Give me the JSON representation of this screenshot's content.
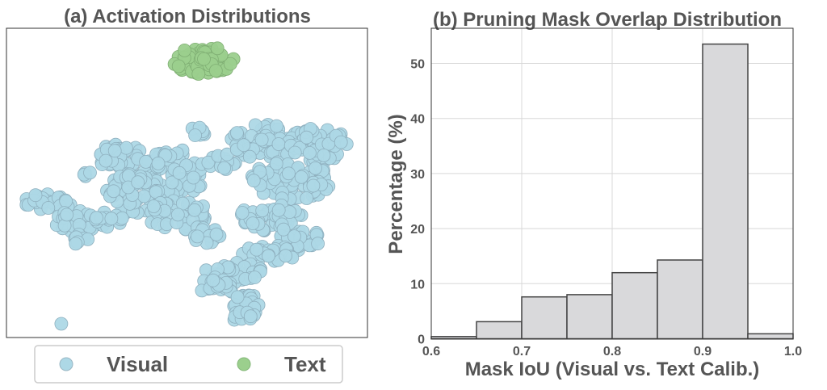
{
  "chart_data": [
    {
      "panel": "a",
      "type": "scatter",
      "title": "(a) Activation Distributions",
      "xlabel": "",
      "ylabel": "",
      "axes_visible": false,
      "grid": false,
      "legend": {
        "position": "bottom",
        "entries": [
          "Visual",
          "Text"
        ]
      },
      "series": [
        {
          "name": "Visual",
          "color": "#ADD8E6",
          "clusters": [
            {
              "cx": 150,
              "cy": 195,
              "rx": 28,
              "ry": 18,
              "n": 40
            },
            {
              "cx": 215,
              "cy": 215,
              "rx": 40,
              "ry": 30,
              "n": 70
            },
            {
              "cx": 165,
              "cy": 240,
              "rx": 35,
              "ry": 25,
              "n": 55
            },
            {
              "cx": 245,
              "cy": 165,
              "rx": 10,
              "ry": 8,
              "n": 10
            },
            {
              "cx": 275,
              "cy": 200,
              "rx": 18,
              "ry": 12,
              "n": 18
            },
            {
              "cx": 330,
              "cy": 175,
              "rx": 45,
              "ry": 22,
              "n": 65
            },
            {
              "cx": 395,
              "cy": 180,
              "rx": 35,
              "ry": 22,
              "n": 50
            },
            {
              "cx": 360,
              "cy": 225,
              "rx": 50,
              "ry": 28,
              "n": 75
            },
            {
              "cx": 60,
              "cy": 250,
              "rx": 35,
              "ry": 10,
              "n": 30
            },
            {
              "cx": 95,
              "cy": 275,
              "rx": 30,
              "ry": 14,
              "n": 30
            },
            {
              "cx": 130,
              "cy": 272,
              "rx": 22,
              "ry": 10,
              "n": 15
            },
            {
              "cx": 100,
              "cy": 298,
              "rx": 10,
              "ry": 8,
              "n": 8
            },
            {
              "cx": 220,
              "cy": 265,
              "rx": 40,
              "ry": 20,
              "n": 45
            },
            {
              "cx": 255,
              "cy": 290,
              "rx": 18,
              "ry": 12,
              "n": 15
            },
            {
              "cx": 335,
              "cy": 270,
              "rx": 40,
              "ry": 18,
              "n": 45
            },
            {
              "cx": 370,
              "cy": 295,
              "rx": 28,
              "ry": 15,
              "n": 30
            },
            {
              "cx": 330,
              "cy": 315,
              "rx": 35,
              "ry": 12,
              "n": 30
            },
            {
              "cx": 290,
              "cy": 338,
              "rx": 38,
              "ry": 13,
              "n": 35
            },
            {
              "cx": 270,
              "cy": 355,
              "rx": 25,
              "ry": 10,
              "n": 22
            },
            {
              "cx": 305,
              "cy": 378,
              "rx": 20,
              "ry": 14,
              "n": 22
            },
            {
              "cx": 300,
              "cy": 392,
              "rx": 18,
              "ry": 6,
              "n": 10
            },
            {
              "cx": 108,
              "cy": 218,
              "rx": 8,
              "ry": 5,
              "n": 4
            },
            {
              "cx": 75,
              "cy": 401,
              "rx": 1,
              "ry": 1,
              "n": 1
            }
          ]
        },
        {
          "name": "Text",
          "color": "#9BCF8D",
          "clusters": [
            {
              "cx": 252,
              "cy": 75,
              "rx": 40,
              "ry": 17,
              "n": 70
            }
          ]
        }
      ]
    },
    {
      "panel": "b",
      "type": "bar",
      "subtype": "histogram",
      "title": "(b) Pruning Mask Overlap Distribution",
      "xlabel": "Mask IoU (Visual vs. Text Calib.)",
      "ylabel": "Percentage (%)",
      "xlim": [
        0.6,
        1.0
      ],
      "ylim": [
        0,
        55
      ],
      "xticks": [
        "0.6",
        "0.7",
        "0.8",
        "0.9",
        "1.0"
      ],
      "yticks": [
        "0",
        "10",
        "20",
        "30",
        "40",
        "50"
      ],
      "grid": true,
      "bar_color": "#D9D9DB",
      "edge_color": "#444444",
      "bins": [
        {
          "x0": 0.6,
          "x1": 0.65,
          "value": 0.4
        },
        {
          "x0": 0.65,
          "x1": 0.7,
          "value": 3.1
        },
        {
          "x0": 0.7,
          "x1": 0.75,
          "value": 7.6
        },
        {
          "x0": 0.75,
          "x1": 0.8,
          "value": 8.0
        },
        {
          "x0": 0.8,
          "x1": 0.85,
          "value": 12.0
        },
        {
          "x0": 0.85,
          "x1": 0.9,
          "value": 14.3
        },
        {
          "x0": 0.9,
          "x1": 0.95,
          "value": 53.5
        },
        {
          "x0": 0.95,
          "x1": 1.0,
          "value": 0.9
        }
      ]
    }
  ]
}
